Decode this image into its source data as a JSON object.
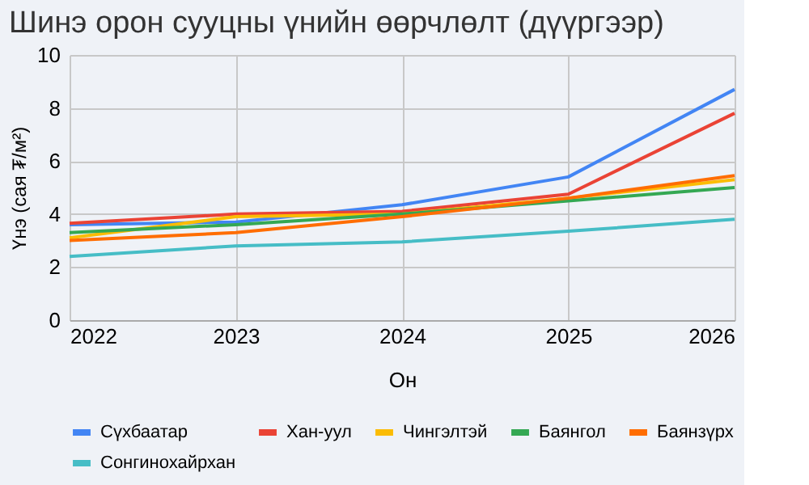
{
  "chart_data": {
    "type": "line",
    "title": "Шинэ орон сууцны үнийн өөрчлөлт (дүүргээр)",
    "xlabel": "Он",
    "ylabel": "Үнэ (сая ₮/м²)",
    "x": [
      2022,
      2023,
      2024,
      2025,
      2026
    ],
    "xlim": [
      2022,
      2026
    ],
    "xticks": [
      2022,
      2023,
      2024,
      2025,
      2026
    ],
    "ylim": [
      0,
      10
    ],
    "yticks": [
      0,
      2,
      4,
      6,
      8,
      10
    ],
    "grid": true,
    "legend": "bottom",
    "marker": "none",
    "line_style": "solid",
    "series": [
      {
        "name": "Сүхбаатар",
        "color": "#4285f4",
        "values": [
          3.6,
          3.7,
          4.35,
          5.4,
          8.7
        ]
      },
      {
        "name": "Хан-уул",
        "color": "#ea4335",
        "values": [
          3.65,
          4.0,
          4.1,
          4.75,
          7.8
        ]
      },
      {
        "name": "Чингэлтэй",
        "color": "#fbbc04",
        "values": [
          3.1,
          3.9,
          4.0,
          4.6,
          5.3
        ]
      },
      {
        "name": "Баянгол",
        "color": "#34a853",
        "values": [
          3.3,
          3.6,
          4.0,
          4.5,
          5.0
        ]
      },
      {
        "name": "Баянзүрх",
        "color": "#ff6d01",
        "values": [
          3.0,
          3.3,
          3.9,
          4.6,
          5.45
        ]
      },
      {
        "name": "Сонгинохайрхан",
        "color": "#46bdc6",
        "values": [
          2.4,
          2.8,
          2.95,
          3.35,
          3.8
        ]
      }
    ]
  }
}
